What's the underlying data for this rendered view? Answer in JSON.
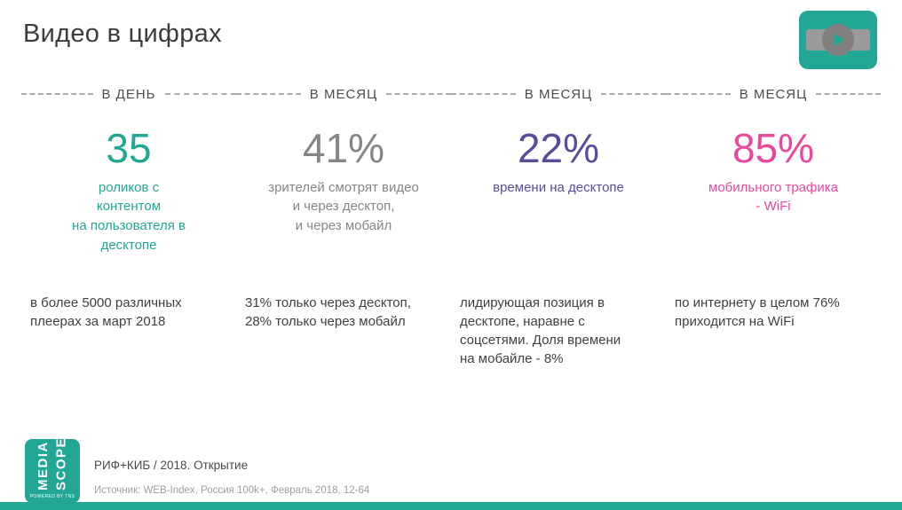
{
  "slide": {
    "title": "Видео в цифрах",
    "accent_color": "#22a795"
  },
  "columns": [
    {
      "period": "В ДЕНЬ",
      "value": "35",
      "color": "#22a795",
      "caption": "роликов с\nконтентом\nна пользователя в\nдесктопе",
      "detail": "в более 5000 различных\nплеерах за март 2018"
    },
    {
      "period": "В МЕСЯЦ",
      "value": "41%",
      "color": "#868686",
      "caption": "зрителей смотрят видео\nи через десктоп,\nи через мобайл",
      "detail": "31% только через десктоп,\n28% только через мобайл"
    },
    {
      "period": "В МЕСЯЦ",
      "value": "22%",
      "color": "#5c4b9c",
      "caption": "времени на десктопе",
      "detail": "лидирующая позиция в\nдесктопе, наравне с\nсоцсетями. Доля времени\nна мобайле - 8%"
    },
    {
      "period": "В МЕСЯЦ",
      "value": "85%",
      "color": "#e84a9b",
      "caption": "мобильного трафика\n- WiFi",
      "detail": "по интернету в целом 76%\nприходится на WiFi"
    }
  ],
  "footer": {
    "line1": "РИФ+КИБ / 2018. Открытие",
    "line2": "Источник: WEB-Index, Россия 100k+, Февраль 2018, 12-64"
  },
  "logo": {
    "line1": "MEDIA",
    "line2": "SCOPE",
    "tagline": "POWERED BY TNS"
  }
}
